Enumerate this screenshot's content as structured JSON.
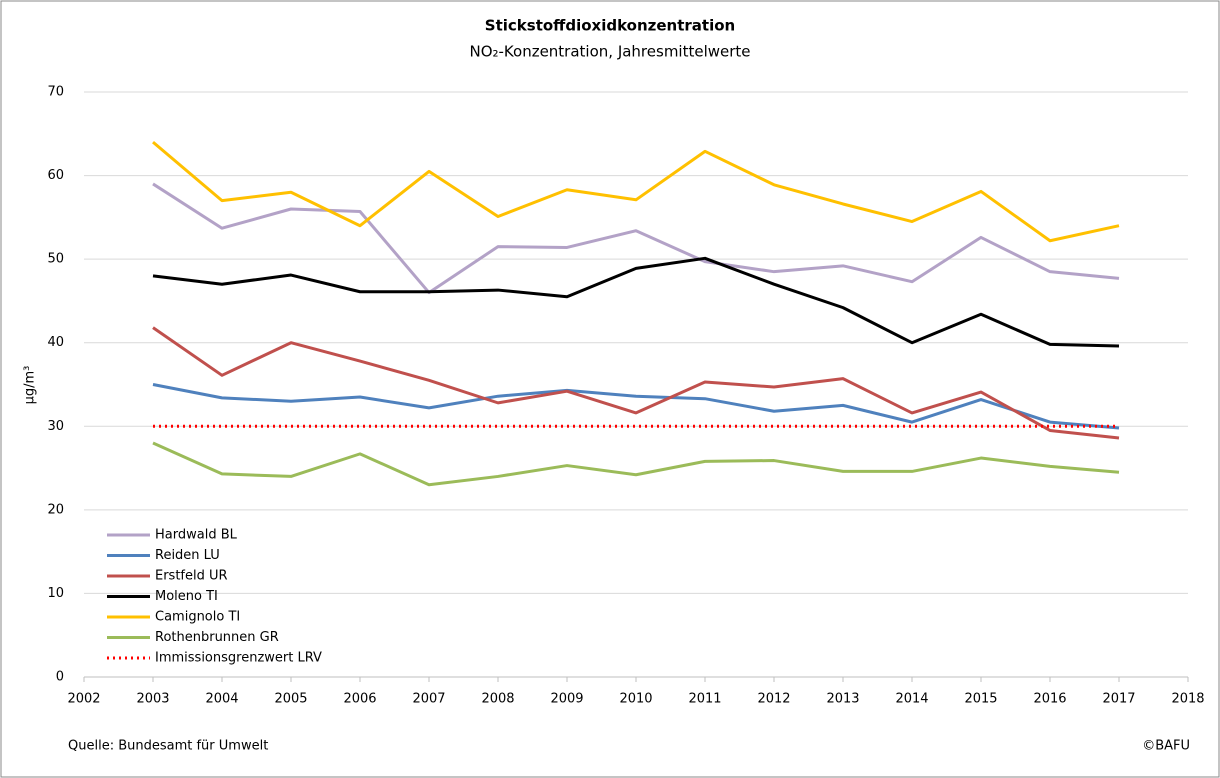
{
  "chart_data": {
    "type": "line",
    "title": "Stickstoffdioxidkonzentration",
    "subtitle": "NO₂-Konzentration, Jahresmittelwerte",
    "y_label": "µg/m³",
    "source": "Quelle: Bundesamt für Umwelt",
    "credit": "©BAFU",
    "x": [
      2003,
      2004,
      2005,
      2006,
      2007,
      2008,
      2009,
      2010,
      2011,
      2012,
      2013,
      2014,
      2015,
      2016,
      2017
    ],
    "xlim": [
      2002,
      2018
    ],
    "xticks": [
      2002,
      2003,
      2004,
      2005,
      2006,
      2007,
      2008,
      2009,
      2010,
      2011,
      2012,
      2013,
      2014,
      2015,
      2016,
      2017,
      2018
    ],
    "ylim": [
      0,
      70
    ],
    "yticks": [
      0,
      10,
      20,
      30,
      40,
      50,
      60,
      70
    ],
    "grid": true,
    "legend": "lower left",
    "series": [
      {
        "name": "Hardwald BL",
        "color": "#b3a2c7",
        "values": [
          59,
          53.7,
          56,
          55.7,
          46,
          51.5,
          51.4,
          53.4,
          49.7,
          48.5,
          49.2,
          47.3,
          52.6,
          48.5,
          47.7
        ]
      },
      {
        "name": "Reiden LU",
        "color": "#4f81bd",
        "values": [
          35,
          33.4,
          33,
          33.5,
          32.2,
          33.6,
          34.3,
          33.6,
          33.3,
          31.8,
          32.5,
          30.5,
          33.2,
          30.5,
          29.8
        ]
      },
      {
        "name": "Erstfeld UR",
        "color": "#c0504d",
        "values": [
          41.8,
          36.1,
          40,
          37.8,
          35.5,
          32.8,
          34.2,
          31.6,
          35.3,
          34.7,
          35.7,
          31.6,
          34.1,
          29.5,
          28.6
        ]
      },
      {
        "name": "Moleno TI",
        "color": "#000000",
        "values": [
          48,
          47,
          48.1,
          46.1,
          46.1,
          46.3,
          45.5,
          48.9,
          50.1,
          47,
          44.2,
          40,
          43.4,
          39.8,
          39.6
        ]
      },
      {
        "name": "Camignolo TI",
        "color": "#ffc000",
        "values": [
          64,
          57,
          58,
          54,
          60.5,
          55.1,
          58.3,
          57.1,
          62.9,
          58.9,
          56.6,
          54.5,
          58.1,
          52.2,
          54
        ]
      },
      {
        "name": "Rothenbrunnen GR",
        "color": "#9bbb59",
        "values": [
          28,
          24.3,
          24,
          26.7,
          23,
          24,
          25.3,
          24.2,
          25.8,
          25.9,
          24.6,
          24.6,
          26.2,
          25.2,
          24.5
        ]
      },
      {
        "name": "Immissionsgrenzwert LRV",
        "color": "#ff0000",
        "dash": "dotted",
        "values": [
          30,
          30,
          30,
          30,
          30,
          30,
          30,
          30,
          30,
          30,
          30,
          30,
          30,
          30,
          30
        ]
      }
    ]
  }
}
